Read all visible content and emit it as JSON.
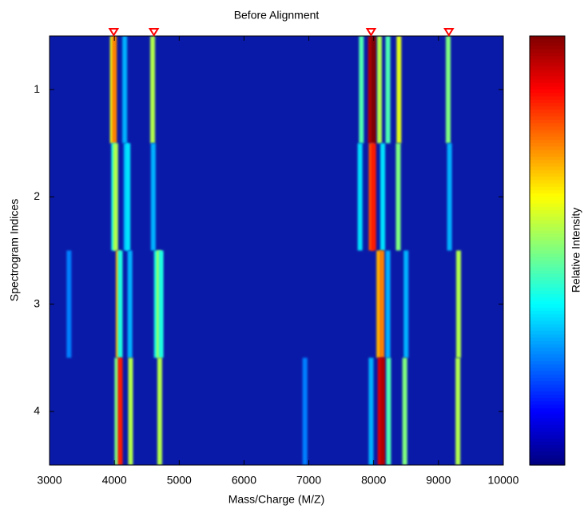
{
  "chart_data": {
    "type": "heatmap",
    "title": "Before Alignment",
    "xlabel": "Mass/Charge (M/Z)",
    "ylabel": "Spectrogram Indices",
    "colorbar_label": "Relative Intensity",
    "colormap": "jet",
    "clim": [
      0,
      1
    ],
    "xlim": [
      3000,
      10000
    ],
    "xticks": [
      3000,
      4000,
      5000,
      6000,
      7000,
      8000,
      9000,
      10000
    ],
    "ylim": [
      0.5,
      4.5
    ],
    "yticks": [
      1,
      2,
      3,
      4
    ],
    "markers_x": [
      3990,
      4610,
      7960,
      9160
    ],
    "marker_color": "#ff0000",
    "rows": [
      {
        "x": [
          3970,
          4000,
          4160,
          4590,
          7810,
          7950,
          8000,
          8090,
          8220,
          8390,
          9150
        ],
        "values": [
          0.6,
          0.75,
          0.3,
          0.55,
          0.45,
          0.95,
          1.0,
          0.55,
          0.45,
          0.6,
          0.5
        ]
      },
      {
        "x": [
          3990,
          4020,
          4180,
          4210,
          4600,
          7790,
          7960,
          8000,
          8140,
          8380,
          9170
        ],
        "values": [
          0.4,
          0.55,
          0.3,
          0.35,
          0.3,
          0.35,
          0.8,
          0.85,
          0.35,
          0.5,
          0.3
        ]
      },
      {
        "x": [
          3300,
          4060,
          4090,
          4240,
          4650,
          4690,
          4720,
          8080,
          8130,
          8220,
          8500,
          9310
        ],
        "values": [
          0.25,
          0.7,
          0.4,
          0.3,
          0.4,
          0.55,
          0.4,
          0.7,
          0.75,
          0.3,
          0.3,
          0.55
        ]
      },
      {
        "x": [
          4040,
          4090,
          4250,
          4700,
          6940,
          7960,
          8100,
          8140,
          8230,
          8480,
          9300
        ],
        "values": [
          0.5,
          0.85,
          0.55,
          0.55,
          0.25,
          0.3,
          0.9,
          0.95,
          0.45,
          0.5,
          0.55
        ]
      }
    ]
  }
}
